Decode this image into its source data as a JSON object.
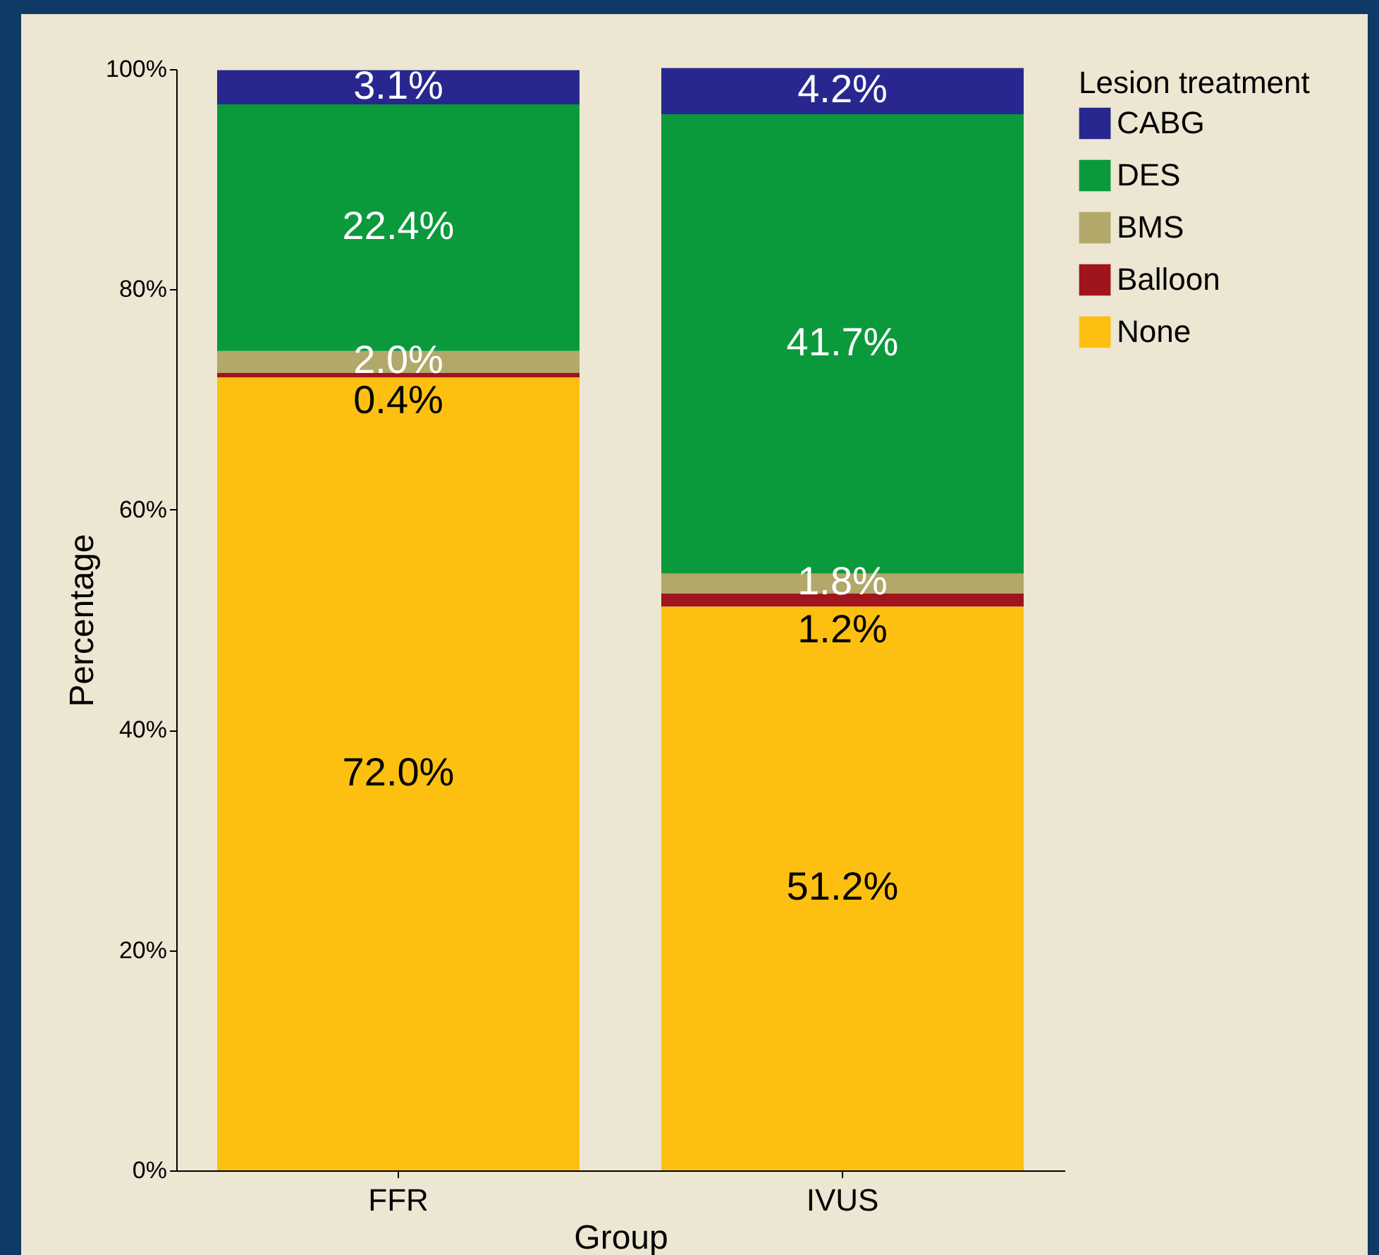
{
  "chart_data": {
    "type": "bar",
    "stacked": true,
    "xlabel": "Group",
    "ylabel": "Percentage",
    "legend_title": "Lesion treatment",
    "legend": "top right",
    "grid": false,
    "categories": [
      "FFR",
      "IVUS"
    ],
    "ylim": [
      0,
      100
    ],
    "yticks": [
      {
        "value": 0,
        "label": "0%"
      },
      {
        "value": 20,
        "label": "20%"
      },
      {
        "value": 40,
        "label": "40%"
      },
      {
        "value": 60,
        "label": "60%"
      },
      {
        "value": 80,
        "label": "80%"
      },
      {
        "value": 100,
        "label": "100%"
      }
    ],
    "series": [
      {
        "name": "None",
        "color": "#fdc010",
        "values": [
          72.0,
          51.2
        ],
        "value_labels": [
          "72.0%",
          "51.2%"
        ]
      },
      {
        "name": "Balloon",
        "color": "#a0141e",
        "values": [
          0.4,
          1.2
        ],
        "value_labels": [
          "0.4%",
          "1.2%"
        ]
      },
      {
        "name": "BMS",
        "color": "#b2a86a",
        "values": [
          2.0,
          1.8
        ],
        "value_labels": [
          "2.0%",
          "1.8%"
        ]
      },
      {
        "name": "DES",
        "color": "#0a9a3c",
        "values": [
          22.4,
          41.7
        ],
        "value_labels": [
          "22.4%",
          "41.7%"
        ]
      },
      {
        "name": "CABG",
        "color": "#27278f",
        "values": [
          3.1,
          4.2
        ],
        "value_labels": [
          "3.1%",
          "4.2%"
        ]
      }
    ]
  }
}
